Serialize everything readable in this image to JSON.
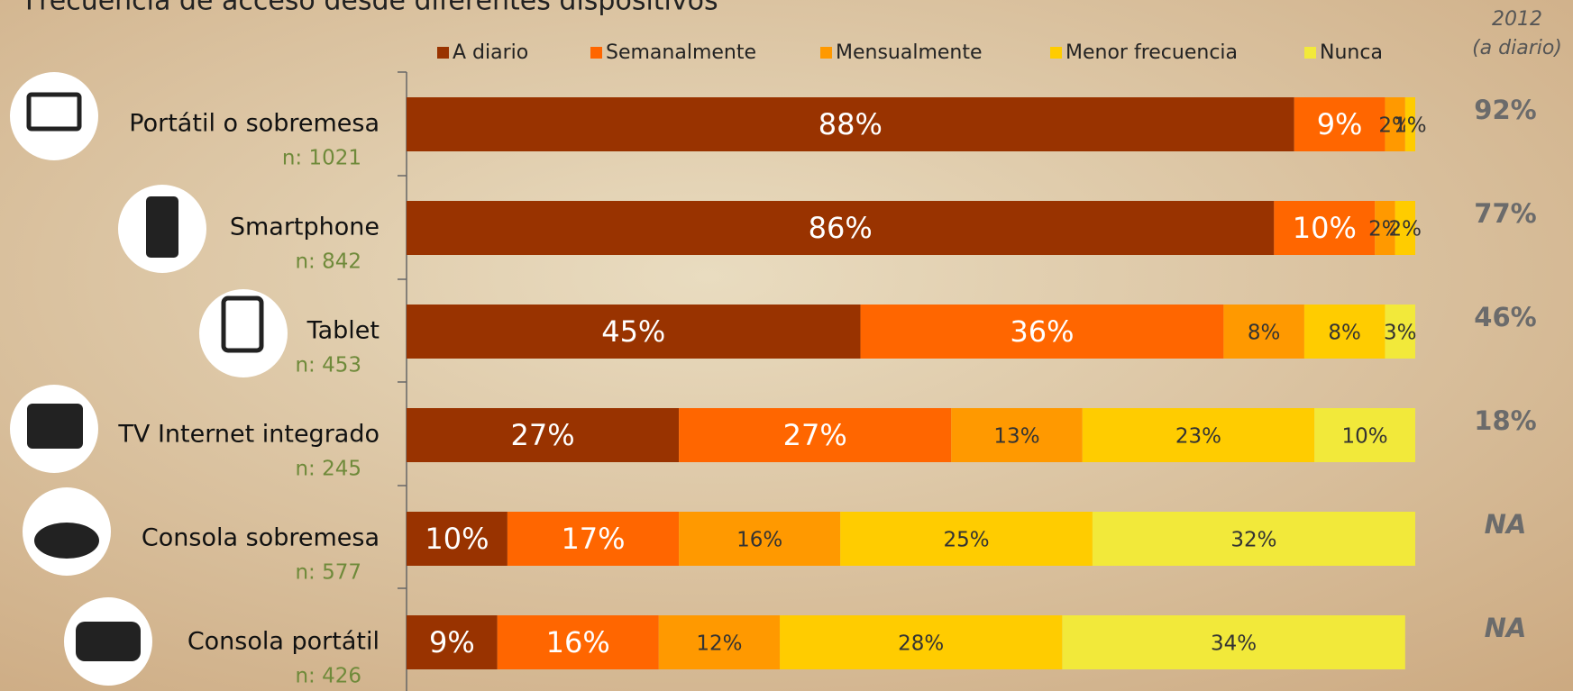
{
  "chart_data": {
    "type": "bar",
    "orientation": "horizontal",
    "stacked": true,
    "title": "Frecuencia de acceso desde diferentes dispositivos",
    "categories": [
      "Portátil o sobremesa",
      "Smartphone",
      "Tablet",
      "TV Internet integrado",
      "Consola sobremesa",
      "Consola portátil"
    ],
    "sample_sizes": [
      "n: 1021",
      "n:  842",
      "n: 453",
      "n: 245",
      "n: 577",
      "n: 426"
    ],
    "xlim": [
      0,
      100
    ],
    "series": [
      {
        "name": "A diario",
        "color": "#993300",
        "values": [
          88,
          86,
          45,
          27,
          10,
          9
        ],
        "value_labels": [
          "88%",
          "86%",
          "45%",
          "27%",
          "10%",
          "9%"
        ]
      },
      {
        "name": "Semanalmente",
        "color": "#ff6600",
        "values": [
          9,
          10,
          36,
          27,
          17,
          16
        ],
        "value_labels": [
          "9%",
          "10%",
          "36%",
          "27%",
          "17%",
          "16%"
        ]
      },
      {
        "name": "Mensualmente",
        "color": "#ff9900",
        "values": [
          2,
          2,
          8,
          13,
          16,
          12
        ],
        "value_labels": [
          "2%",
          "2%",
          "8%",
          "13%",
          "16%",
          "12%"
        ]
      },
      {
        "name": "Menor frecuencia",
        "color": "#ffcc00",
        "values": [
          1,
          2,
          8,
          23,
          25,
          28
        ],
        "value_labels": [
          "1%",
          "2%",
          "8%",
          "23%",
          "25%",
          "28%"
        ]
      },
      {
        "name": "Nunca",
        "color": "#f2e93a",
        "values": [
          null,
          null,
          3,
          10,
          32,
          34
        ],
        "value_labels": [
          null,
          null,
          "3%",
          "10%",
          "32%",
          "34%"
        ]
      }
    ],
    "column_header": [
      "2012",
      "(a diario)"
    ],
    "reference_labels": [
      "92%",
      "77%",
      "46%",
      "18%",
      "NA",
      "NA"
    ]
  }
}
